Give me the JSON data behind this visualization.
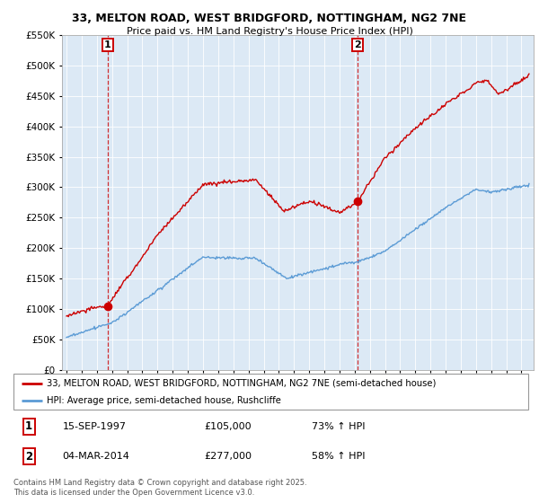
{
  "title1": "33, MELTON ROAD, WEST BRIDGFORD, NOTTINGHAM, NG2 7NE",
  "title2": "Price paid vs. HM Land Registry's House Price Index (HPI)",
  "legend_line1": "33, MELTON ROAD, WEST BRIDGFORD, NOTTINGHAM, NG2 7NE (semi-detached house)",
  "legend_line2": "HPI: Average price, semi-detached house, Rushcliffe",
  "event1_date": "15-SEP-1997",
  "event1_price": "£105,000",
  "event1_hpi": "73% ↑ HPI",
  "event2_date": "04-MAR-2014",
  "event2_price": "£277,000",
  "event2_hpi": "58% ↑ HPI",
  "footer": "Contains HM Land Registry data © Crown copyright and database right 2025.\nThis data is licensed under the Open Government Licence v3.0.",
  "red_color": "#cc0000",
  "blue_color": "#5b9bd5",
  "chart_bg": "#dce9f5",
  "grid_color": "#ffffff",
  "fig_bg": "#ffffff",
  "ylim": [
    0,
    550000
  ],
  "yticks": [
    0,
    50000,
    100000,
    150000,
    200000,
    250000,
    300000,
    350000,
    400000,
    450000,
    500000,
    550000
  ],
  "event1_x": 1997.71,
  "event1_y": 105000,
  "event2_x": 2014.17,
  "event2_y": 277000,
  "xmin": 1994.7,
  "xmax": 2025.8
}
